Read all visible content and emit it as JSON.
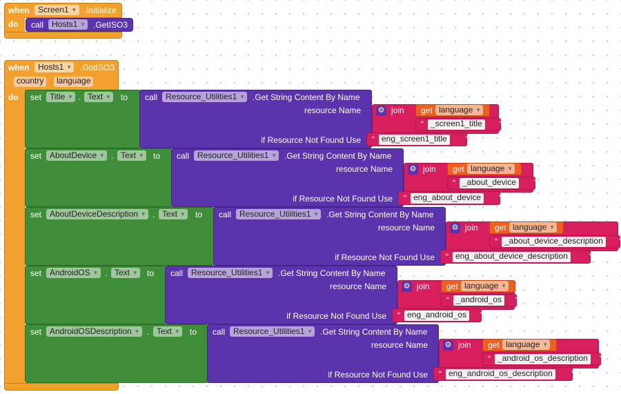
{
  "kw": {
    "when": "when",
    "do": "do",
    "call": "call",
    "set": "set",
    "to": "to",
    "join": "join",
    "get": "get",
    "dot": ".",
    "q": "“",
    "qc": "”"
  },
  "event1": {
    "component": "Screen1",
    "event": ".Initialize",
    "call_component": "Hosts1",
    "call_method": ".GetISO3"
  },
  "event2": {
    "component": "Hosts1",
    "event": ".GotISO3",
    "params": [
      "country",
      "language"
    ]
  },
  "resource": {
    "component": "Resource_Utilities1",
    "method": ".Get String Content By Name",
    "name_label": "resource Name",
    "notfound_label": "if Resource Not Found Use",
    "get_var": "language"
  },
  "setters": [
    {
      "component": "Title",
      "property": "Text",
      "suffix": "_screen1_title",
      "fallback": "eng_screen1_title"
    },
    {
      "component": "AboutDevice",
      "property": "Text",
      "suffix": "_about_device",
      "fallback": "eng_about_device"
    },
    {
      "component": "AboutDeviceDescription",
      "property": "Text",
      "suffix": "_about_device_description",
      "fallback": "eng_about_device_description"
    },
    {
      "component": "AndroidOS",
      "property": "Text",
      "suffix": "_android_os",
      "fallback": "eng_android_os"
    },
    {
      "component": "AndroidOSDescription",
      "property": "Text",
      "suffix": "_android_os_description",
      "fallback": "eng_android_os_description"
    }
  ],
  "colors": {
    "event": "#f3a12c",
    "component": "#3f8e3a",
    "call": "#5b33ad",
    "text": "#d81f5e",
    "variable": "#ef5f21"
  }
}
